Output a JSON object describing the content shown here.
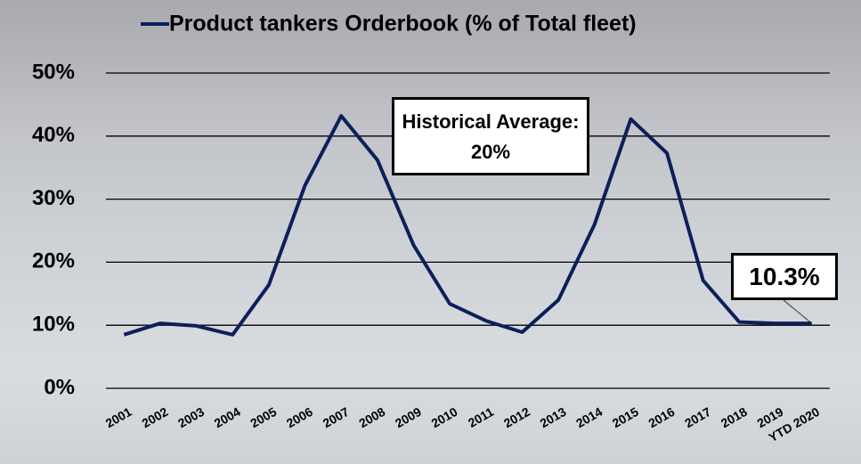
{
  "chart_data": {
    "type": "line",
    "categories": [
      "2001",
      "2002",
      "2003",
      "2004",
      "2005",
      "2006",
      "2007",
      "2008",
      "2009",
      "2010",
      "2011",
      "2012",
      "2013",
      "2014",
      "2015",
      "2016",
      "2017",
      "2018",
      "2019",
      "YTD 2020"
    ],
    "series": [
      {
        "name": "Product tankers Orderbook (% of Total fleet)",
        "color": "#0c1f5a",
        "values": [
          8.5,
          10.3,
          9.9,
          8.5,
          16.4,
          32.2,
          43.2,
          36.2,
          22.7,
          13.4,
          10.7,
          8.9,
          14.0,
          26.0,
          42.7,
          37.3,
          17.1,
          10.5,
          10.3,
          10.3
        ]
      }
    ],
    "ylim": [
      0,
      50
    ],
    "yticks": [
      {
        "value": 0,
        "label": "0%"
      },
      {
        "value": 10,
        "label": "10%"
      },
      {
        "value": 20,
        "label": "20%"
      },
      {
        "value": 30,
        "label": "30%"
      },
      {
        "value": 40,
        "label": "40%"
      },
      {
        "value": 50,
        "label": "50%"
      }
    ],
    "grid": true,
    "legend": "top",
    "annotations": [
      "Historical Average: 20%",
      "10.3%"
    ]
  }
}
